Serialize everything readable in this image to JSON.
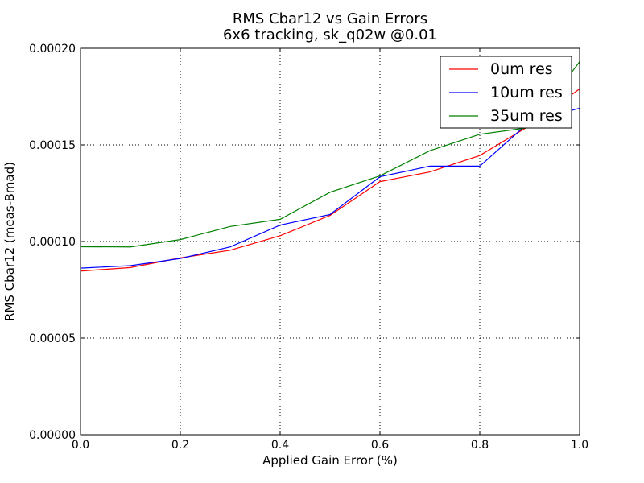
{
  "chart_data": {
    "type": "line",
    "title": "RMS Cbar12 vs Gain Errors",
    "subtitle": "6x6 tracking, sk_q02w @0.01",
    "xlabel": "Applied Gain Error (%)",
    "ylabel": "RMS Cbar12 (meas-Bmad)",
    "xlim": [
      0.0,
      1.0
    ],
    "ylim": [
      0.0,
      0.0002
    ],
    "xticks": [
      0.0,
      0.2,
      0.4,
      0.6,
      0.8,
      1.0
    ],
    "xtick_labels": [
      "0.0",
      "0.2",
      "0.4",
      "0.6",
      "0.8",
      "1.0"
    ],
    "yticks": [
      0.0,
      5e-05,
      0.0001,
      0.00015,
      0.0002
    ],
    "ytick_labels": [
      "0.00000",
      "0.00005",
      "0.00010",
      "0.00015",
      "0.00020"
    ],
    "grid": true,
    "legend_position": "top-right",
    "x": [
      0.0,
      0.1,
      0.2,
      0.3,
      0.4,
      0.5,
      0.6,
      0.7,
      0.8,
      0.9,
      1.0
    ],
    "series": [
      {
        "name": "0um res",
        "color": "#ff0000",
        "values": [
          8.47e-05,
          8.65e-05,
          9.15e-05,
          9.55e-05,
          0.000103,
          0.0001135,
          0.000131,
          0.000136,
          0.0001445,
          0.00016,
          0.000179
        ]
      },
      {
        "name": "10um res",
        "color": "#0000ff",
        "values": [
          8.62e-05,
          8.75e-05,
          9.12e-05,
          9.72e-05,
          0.0001085,
          0.000114,
          0.0001335,
          0.000139,
          0.000139,
          0.000162,
          0.000169
        ]
      },
      {
        "name": "35um res",
        "color": "#008000",
        "values": [
          9.73e-05,
          9.72e-05,
          0.000101,
          0.0001078,
          0.0001115,
          0.0001255,
          0.000134,
          0.000147,
          0.0001555,
          0.000159,
          0.000193
        ]
      }
    ]
  }
}
